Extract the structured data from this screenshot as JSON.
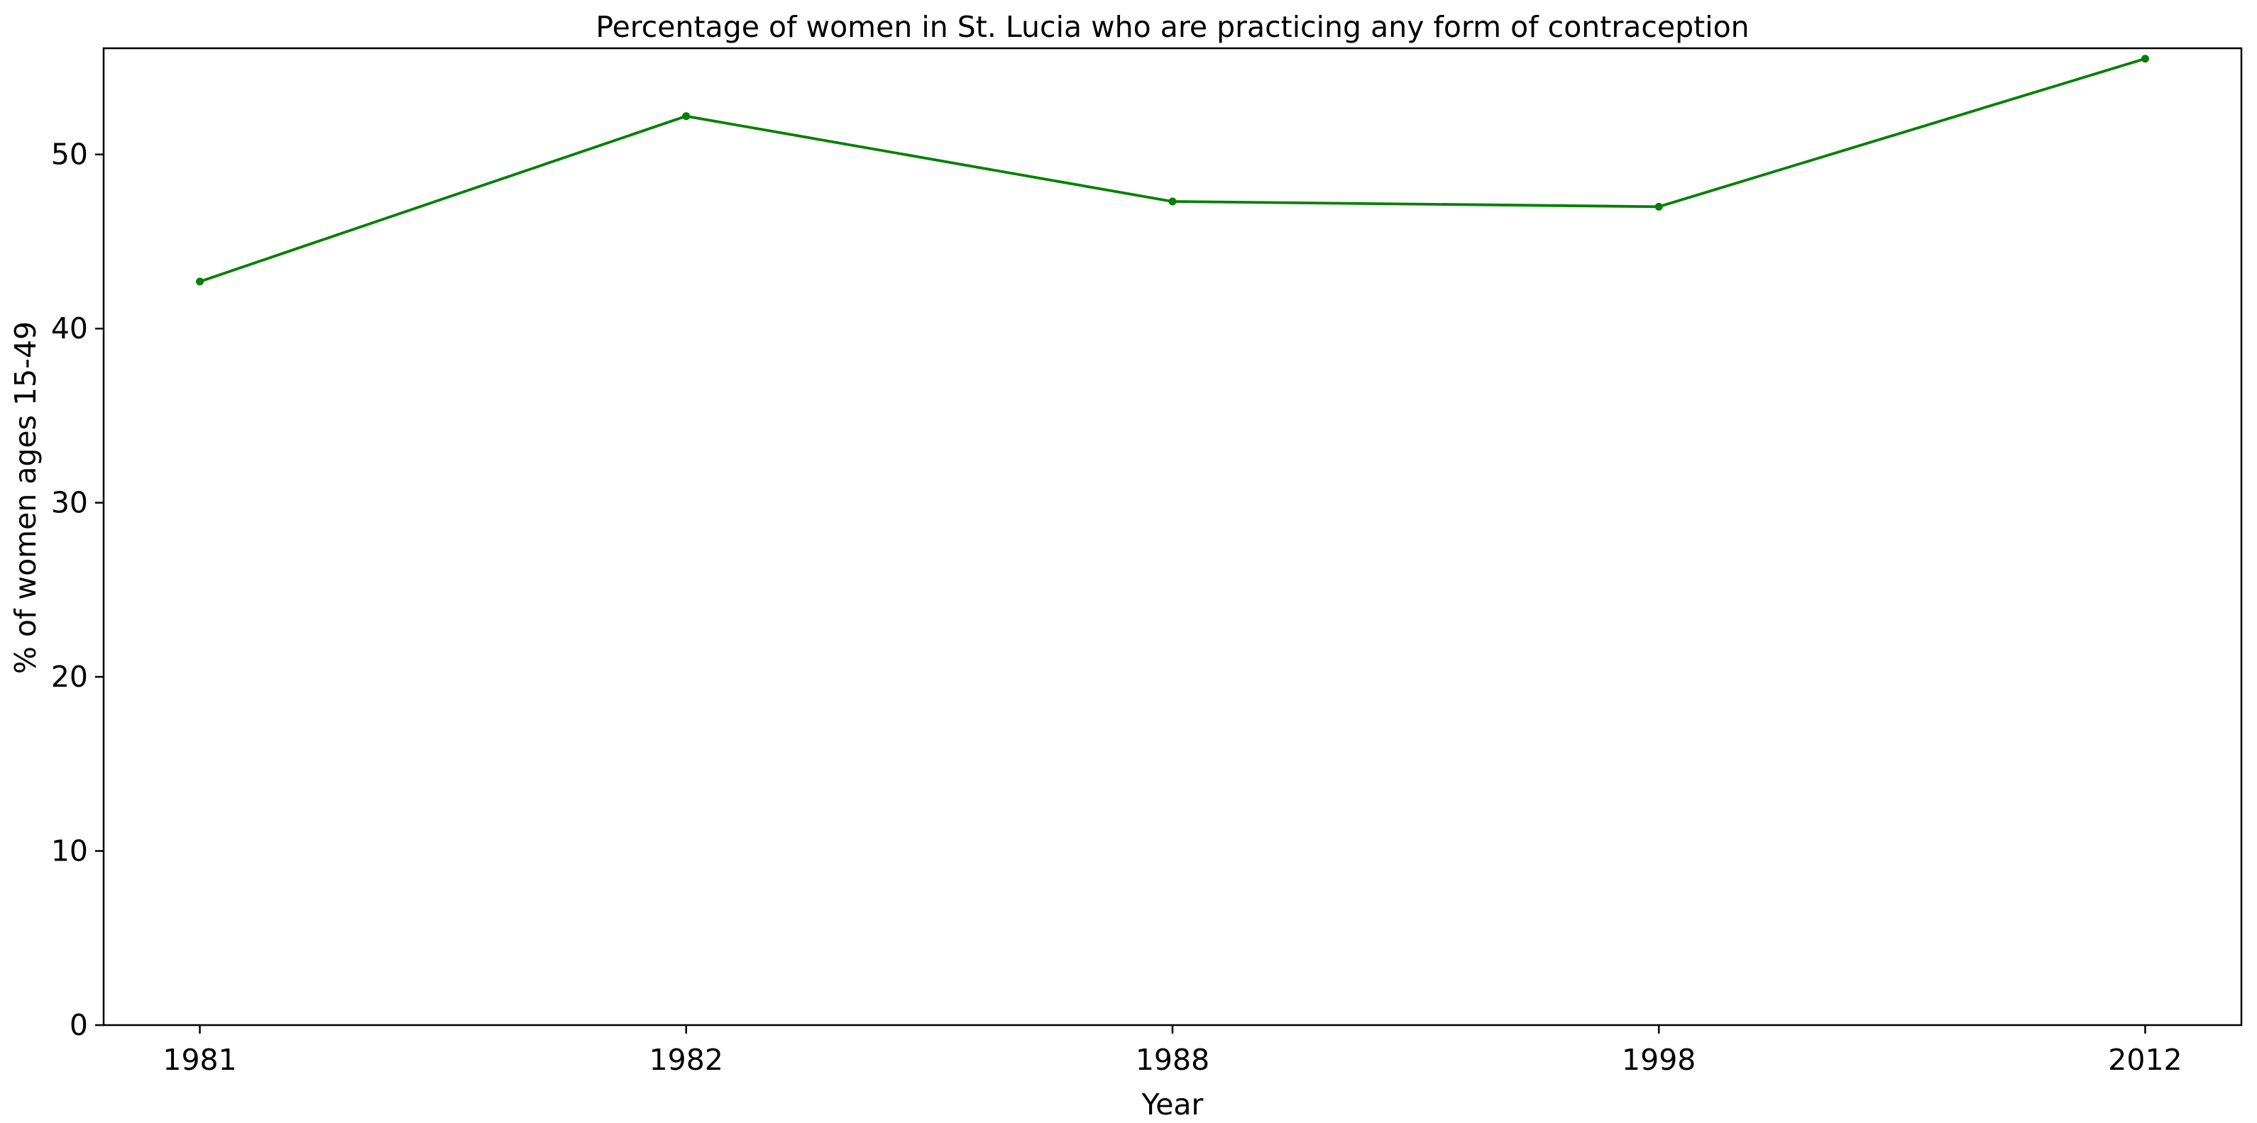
{
  "chart_data": {
    "type": "line",
    "title": "Percentage of women in St. Lucia who are practicing any form of contraception",
    "xlabel": "Year",
    "ylabel": "% of women ages 15-49",
    "categories": [
      "1981",
      "1982",
      "1988",
      "1998",
      "2012"
    ],
    "series": [
      {
        "values": [
          42.7,
          52.2,
          47.3,
          47.0,
          55.5
        ],
        "color": "#008000"
      }
    ],
    "ylim": [
      0,
      56.1
    ],
    "yticks": [
      0,
      10,
      20,
      30,
      40,
      50
    ],
    "grid": false,
    "legend": "none"
  }
}
